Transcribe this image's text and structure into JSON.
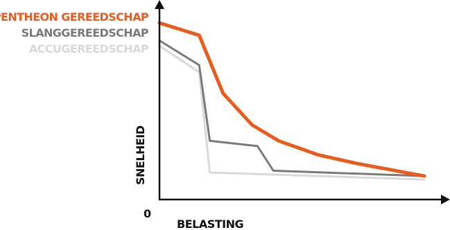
{
  "chart_data": {
    "type": "line",
    "title": "",
    "xlabel": "BELASTING",
    "ylabel": "SNELHEID",
    "origin_label": "0",
    "xlim": [
      0,
      100
    ],
    "ylim": [
      0,
      100
    ],
    "grid": false,
    "legend": "top-left",
    "series": [
      {
        "name": "PENTHEON GEREEDSCHAP",
        "color": "#e85d1f",
        "x": [
          0,
          15,
          24,
          35,
          45,
          60,
          75,
          100
        ],
        "y": [
          98,
          91,
          58,
          40,
          31,
          23,
          18,
          11
        ]
      },
      {
        "name": "SLANGGEREEDSCHAP",
        "color": "#7a7a7a",
        "x": [
          0,
          15,
          19,
          37,
          43,
          100
        ],
        "y": [
          88,
          74,
          31,
          28,
          14,
          11
        ]
      },
      {
        "name": "ACCUGEREEDSCHAP",
        "color": "#d9d9d9",
        "x": [
          0,
          15,
          19,
          100
        ],
        "y": [
          85,
          70,
          13,
          9
        ]
      }
    ]
  }
}
